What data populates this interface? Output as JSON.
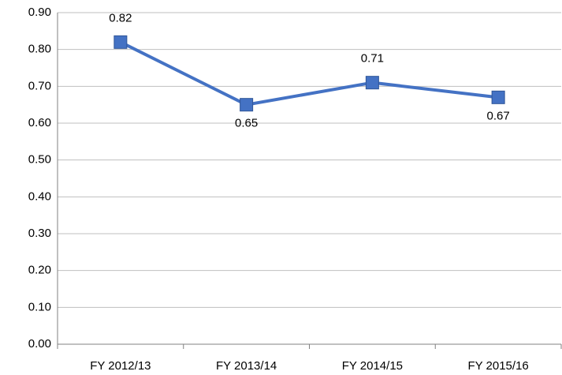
{
  "chart_data": {
    "type": "line",
    "categories": [
      "FY 2012/13",
      "FY 2013/14",
      "FY 2014/15",
      "FY 2015/16"
    ],
    "values": [
      0.82,
      0.65,
      0.71,
      0.67
    ],
    "color": "#4472c4",
    "ylim": [
      0,
      0.9
    ],
    "yticks": [
      {
        "value": 0,
        "label": "0.00"
      },
      {
        "value": 0.1,
        "label": "0.10"
      },
      {
        "value": 0.2,
        "label": "0.20"
      },
      {
        "value": 0.3,
        "label": "0.30"
      },
      {
        "value": 0.4,
        "label": "0.40"
      },
      {
        "value": 0.5,
        "label": "0.50"
      },
      {
        "value": 0.6,
        "label": "0.60"
      },
      {
        "value": 0.7,
        "label": "0.70"
      },
      {
        "value": 0.8,
        "label": "0.80"
      },
      {
        "value": 0.9,
        "label": "0.90"
      }
    ],
    "grid": true
  }
}
